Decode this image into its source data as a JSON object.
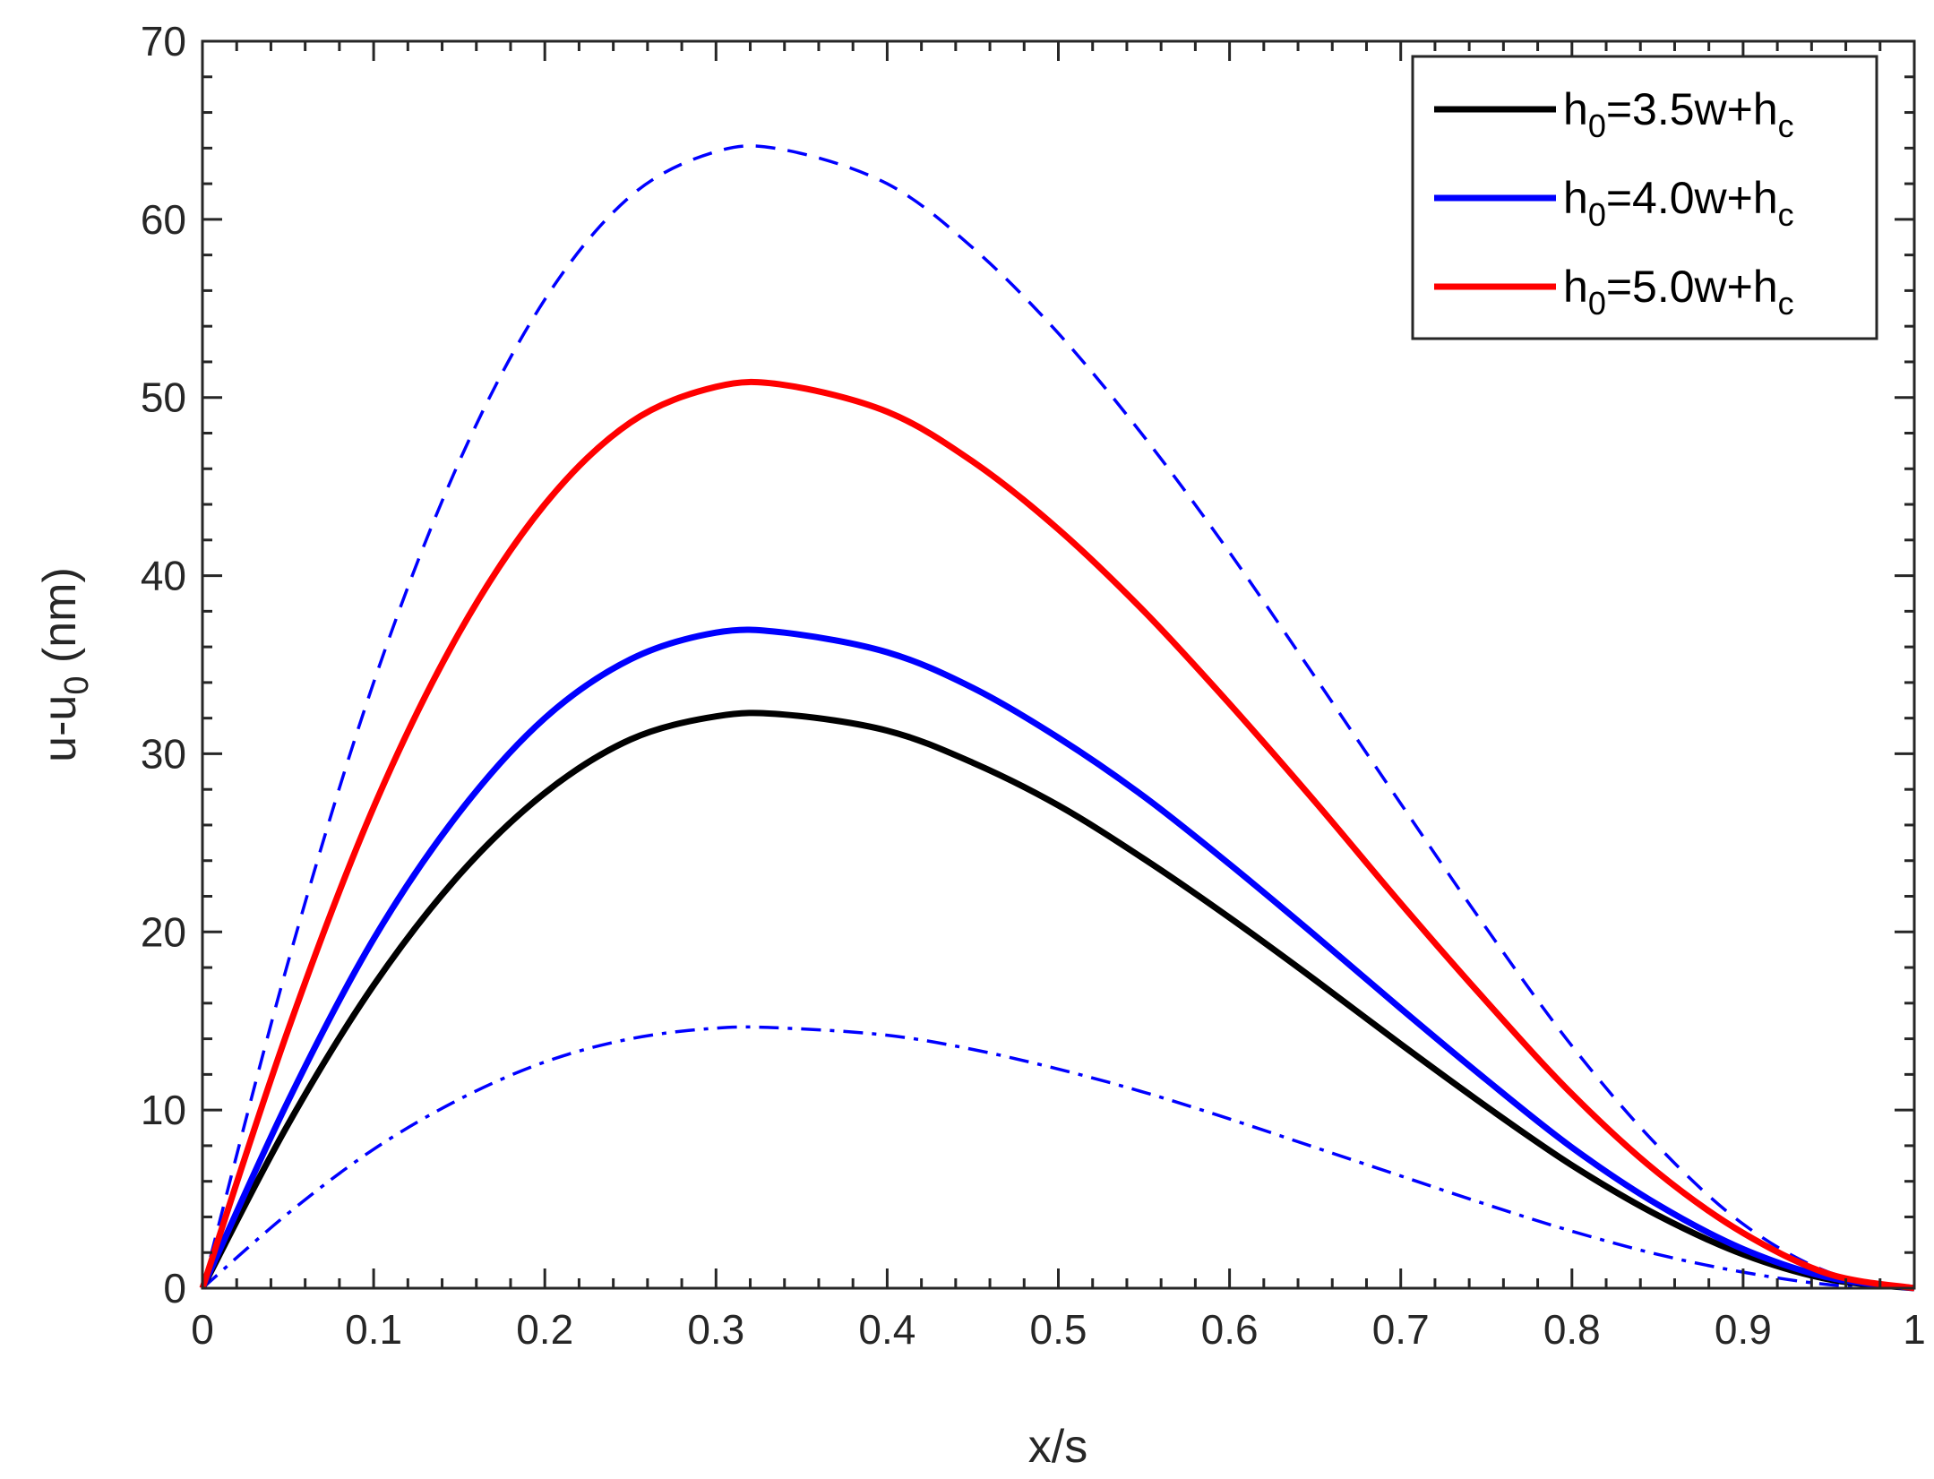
{
  "chart_data": {
    "type": "line",
    "title": "",
    "xlabel": "x/s",
    "ylabel": {
      "main": "u-u",
      "sub": "0",
      "unit": " (nm)"
    },
    "xlim": [
      0,
      1
    ],
    "ylim": [
      0,
      70
    ],
    "x_ticks": [
      0,
      0.1,
      0.2,
      0.3,
      0.4,
      0.5,
      0.6,
      0.7,
      0.8,
      0.9,
      1
    ],
    "x_tick_labels": [
      "0",
      "0.1",
      "0.2",
      "0.3",
      "0.4",
      "0.5",
      "0.6",
      "0.7",
      "0.8",
      "0.9",
      "1"
    ],
    "y_ticks": [
      0,
      10,
      20,
      30,
      40,
      50,
      60,
      70
    ],
    "y_tick_labels": [
      "0",
      "10",
      "20",
      "30",
      "40",
      "50",
      "60",
      "70"
    ],
    "grid": false,
    "legend_position": "top-right",
    "x": [
      0,
      0.05,
      0.1,
      0.15,
      0.2,
      0.25,
      0.3,
      0.34,
      0.4,
      0.45,
      0.5,
      0.55,
      0.6,
      0.65,
      0.7,
      0.75,
      0.8,
      0.85,
      0.9,
      0.95,
      1
    ],
    "series": [
      {
        "name": "h0=3.5w+hc",
        "label_parts": [
          "h",
          "0",
          "=3.5w+h",
          "c"
        ],
        "color": "#000000",
        "style": "solid",
        "in_legend": true,
        "values": [
          0,
          9.2,
          17.0,
          23.2,
          27.8,
          30.8,
          32.1,
          32.2,
          31.3,
          29.5,
          27.1,
          24.1,
          20.8,
          17.3,
          13.7,
          10.2,
          6.9,
          4.1,
          1.9,
          0.5,
          0
        ]
      },
      {
        "name": "h0=4.0w+hc",
        "label_parts": [
          "h",
          "0",
          "=4.0w+h",
          "c"
        ],
        "color": "#0000ff",
        "style": "solid",
        "in_legend": true,
        "values": [
          0,
          10.5,
          19.6,
          26.7,
          32.0,
          35.3,
          36.8,
          36.8,
          35.7,
          33.7,
          30.9,
          27.6,
          23.8,
          19.8,
          15.7,
          11.7,
          7.9,
          4.7,
          2.2,
          0.6,
          0
        ]
      },
      {
        "name": "h0=5.0w+hc",
        "label_parts": [
          "h",
          "0",
          "=5.0w+h",
          "c"
        ],
        "color": "#ff0000",
        "style": "solid",
        "in_legend": true,
        "values": [
          0,
          14.5,
          27.0,
          36.8,
          44.0,
          48.6,
          50.6,
          50.7,
          49.2,
          46.4,
          42.6,
          38.0,
          32.8,
          27.3,
          21.6,
          16.1,
          10.9,
          6.5,
          3.1,
          0.8,
          0
        ]
      },
      {
        "name": "blue dashed",
        "color": "#0000ff",
        "style": "dashed",
        "in_legend": false,
        "values": [
          0,
          18.3,
          34.0,
          46.4,
          55.5,
          61.3,
          63.8,
          63.9,
          62.0,
          58.4,
          53.6,
          47.8,
          41.3,
          34.3,
          27.2,
          20.2,
          13.6,
          8.0,
          3.6,
          0.9,
          0
        ]
      },
      {
        "name": "blue dash-dot",
        "color": "#0000ff",
        "style": "dashdot",
        "in_legend": false,
        "values": [
          0,
          4.2,
          7.8,
          10.6,
          12.7,
          14.0,
          14.6,
          14.6,
          14.2,
          13.4,
          12.3,
          11.0,
          9.5,
          7.9,
          6.3,
          4.7,
          3.2,
          1.9,
          0.9,
          0.2,
          0
        ]
      }
    ]
  }
}
